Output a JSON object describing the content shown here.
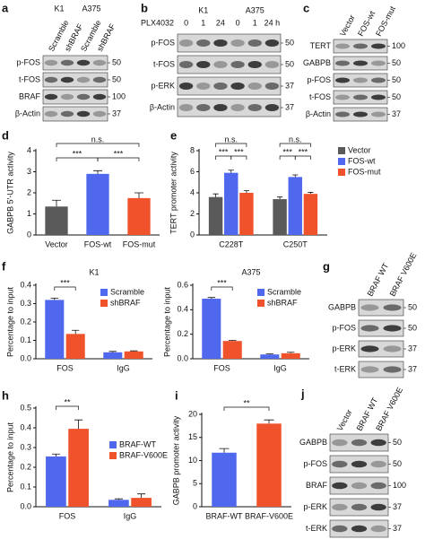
{
  "blots": {
    "a": {
      "label": "a",
      "groups": [
        "K1",
        "A375"
      ],
      "lanes": [
        "Scramble",
        "shBRAF",
        "Scramble",
        "shBRAF"
      ],
      "rows": [
        "p-FOS",
        "t-FOS",
        "BRAF",
        "β-Actin"
      ],
      "markers": [
        50,
        50,
        100,
        37
      ]
    },
    "b": {
      "label": "b",
      "groups": [
        "K1",
        "A375"
      ],
      "treatment": "PLX4032",
      "lanes": [
        "0",
        "1",
        "24",
        "0",
        "1",
        "24 h"
      ],
      "rows": [
        "p-FOS",
        "t-FOS",
        "p-ERK",
        "β-Actin"
      ],
      "markers": [
        50,
        50,
        37,
        37
      ]
    },
    "c": {
      "label": "c",
      "lanes": [
        "Vector",
        "FOS-wt",
        "FOS-mut"
      ],
      "rows": [
        "TERT",
        "GABPB",
        "p-FOS",
        "t-FOS",
        "β-Actin"
      ],
      "markers": [
        100,
        50,
        50,
        50,
        37
      ]
    },
    "g": {
      "label": "g",
      "lanes": [
        "BRAF WT",
        "BRAF V600E"
      ],
      "rows": [
        "GABPB",
        "p-FOS",
        "p-ERK",
        "t-ERK"
      ],
      "markers": [
        50,
        50,
        37,
        37
      ]
    },
    "j": {
      "label": "j",
      "lanes": [
        "Vector",
        "BRAF WT",
        "BRAF V600E"
      ],
      "rows": [
        "GABPB",
        "p-FOS",
        "BRAF",
        "p-ERK",
        "t-ERK"
      ],
      "markers": [
        50,
        50,
        100,
        37,
        37
      ]
    }
  },
  "chart_data": [
    {
      "type": "bar",
      "panel": "d",
      "ylabel": "GABPB 5′-UTR activity",
      "categories": [
        "Vector",
        "FOS-wt",
        "FOS-mut"
      ],
      "values": [
        1.35,
        2.9,
        1.75
      ],
      "errors": [
        0.3,
        0.15,
        0.25
      ],
      "colors": [
        "#5a5a5a",
        "#5068ee",
        "#f0522c"
      ],
      "ylim": [
        0,
        4
      ],
      "yticks": [
        0,
        1,
        2,
        3,
        4
      ],
      "annotations": [
        "n.s.",
        "***",
        "***"
      ]
    },
    {
      "type": "bar",
      "panel": "e",
      "ylabel": "TERT promoter activity",
      "categories": [
        "C228T",
        "C250T"
      ],
      "series": [
        {
          "name": "Vector",
          "color": "#5a5a5a",
          "values": [
            3.6,
            3.4
          ],
          "errors": [
            0.3,
            0.2
          ]
        },
        {
          "name": "FOS-wt",
          "color": "#5068ee",
          "values": [
            5.9,
            5.5
          ],
          "errors": [
            0.25,
            0.2
          ]
        },
        {
          "name": "FOS-mut",
          "color": "#f0522c",
          "values": [
            4.0,
            3.9
          ],
          "errors": [
            0.2,
            0.15
          ]
        }
      ],
      "ylim": [
        0,
        8
      ],
      "yticks": [
        0,
        2,
        4,
        6,
        8
      ],
      "legend": "outside right",
      "annotations": [
        "n.s.",
        "***",
        "***",
        "n.s.",
        "***",
        "***"
      ]
    },
    {
      "type": "bar",
      "panel": "f",
      "title": "K1",
      "ylabel": "Percentage to input",
      "categories": [
        "FOS",
        "IgG"
      ],
      "series": [
        {
          "name": "Scramble",
          "color": "#5068ee",
          "values": [
            0.32,
            0.035
          ],
          "errors": [
            0.01,
            0.005
          ]
        },
        {
          "name": "shBRAF",
          "color": "#f0522c",
          "values": [
            0.135,
            0.04
          ],
          "errors": [
            0.02,
            0.003
          ]
        }
      ],
      "ylim": [
        0,
        0.4
      ],
      "yticks": [
        {
          "value": 0,
          "label": "0.0"
        },
        0.1,
        0.2,
        0.3,
        0.4
      ],
      "legend": "upper right",
      "annotations": [
        "***"
      ]
    },
    {
      "type": "bar",
      "title": "A375",
      "ylabel": "Percentage to input",
      "categories": [
        "FOS",
        "IgG"
      ],
      "series": [
        {
          "name": "Scramble",
          "color": "#5068ee",
          "values": [
            0.49,
            0.035
          ],
          "errors": [
            0.01,
            0.005
          ]
        },
        {
          "name": "shBRAF",
          "color": "#f0522c",
          "values": [
            0.145,
            0.045
          ],
          "errors": [
            0.005,
            0.008
          ]
        }
      ],
      "ylim": [
        0,
        0.6
      ],
      "yticks": [
        {
          "value": 0,
          "label": "0.0"
        },
        0.2,
        0.4,
        0.6
      ],
      "legend": "upper right",
      "annotations": [
        "***"
      ]
    },
    {
      "type": "bar",
      "panel": "h",
      "ylabel": "Percentage to input",
      "categories": [
        "FOS",
        "IgG"
      ],
      "series": [
        {
          "name": "BRAF-WT",
          "color": "#5068ee",
          "values": [
            0.255,
            0.035
          ],
          "errors": [
            0.012,
            0.005
          ]
        },
        {
          "name": "BRAF-V600E",
          "color": "#f0522c",
          "values": [
            0.395,
            0.045
          ],
          "errors": [
            0.045,
            0.02
          ]
        }
      ],
      "ylim": [
        0,
        0.5
      ],
      "yticks": [
        {
          "value": 0,
          "label": "0.0"
        },
        0.1,
        0.2,
        0.3,
        0.4,
        0.5
      ],
      "legend": "center right",
      "annotations": [
        "**"
      ]
    },
    {
      "type": "bar",
      "panel": "i",
      "ylabel": "GABPB promoter activity",
      "categories": [
        "BRAF-WT",
        "BRAF-V600E"
      ],
      "values": [
        11.7,
        18.0
      ],
      "errors": [
        0.9,
        0.8
      ],
      "colors": [
        "#5068ee",
        "#f0522c"
      ],
      "ylim": [
        0,
        20
      ],
      "yticks": [
        0,
        5,
        10,
        15,
        20
      ],
      "annotations": [
        "**"
      ]
    }
  ]
}
